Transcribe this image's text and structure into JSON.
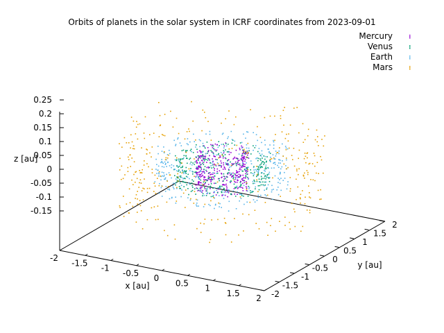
{
  "chart_data": {
    "type": "scatter",
    "projection": "3d",
    "title": "Orbits of planets in the solar system in ICRF coordinates from 2023-09-01",
    "xlabel": "x [au]",
    "ylabel": "y [au]",
    "zlabel": "z [au]",
    "xlim": [
      -2,
      2
    ],
    "ylim": [
      -2,
      2
    ],
    "zlim": [
      -0.15,
      0.25
    ],
    "x_ticks": [
      "-2",
      "-1.5",
      "-1",
      "-0.5",
      "0",
      "0.5",
      "1",
      "1.5",
      "2"
    ],
    "y_ticks": [
      "-2",
      "-1.5",
      "-1",
      "-0.5",
      "0",
      "0.5",
      "1",
      "1.5",
      "2"
    ],
    "z_ticks": [
      "0.25",
      "0.2",
      "0.15",
      "0.1",
      "0.05",
      "0",
      "-0.05",
      "-0.1",
      "-0.15"
    ],
    "legend_position": "top-right",
    "grid": false,
    "series": [
      {
        "name": "Mercury",
        "color": "#9400d3",
        "orbit_radius_au": 0.39,
        "orbit_thickness_au": 0.07,
        "approx_points": 365
      },
      {
        "name": "Venus",
        "color": "#009e73",
        "orbit_radius_au": 0.72,
        "orbit_thickness_au": 0.05,
        "approx_points": 365
      },
      {
        "name": "Earth",
        "color": "#56b4e9",
        "orbit_radius_au": 1.0,
        "orbit_thickness_au": 0.07,
        "approx_points": 365
      },
      {
        "name": "Mars",
        "color": "#e69f00",
        "orbit_radius_au": 1.52,
        "orbit_thickness_au": 0.15,
        "approx_points": 365
      }
    ]
  }
}
